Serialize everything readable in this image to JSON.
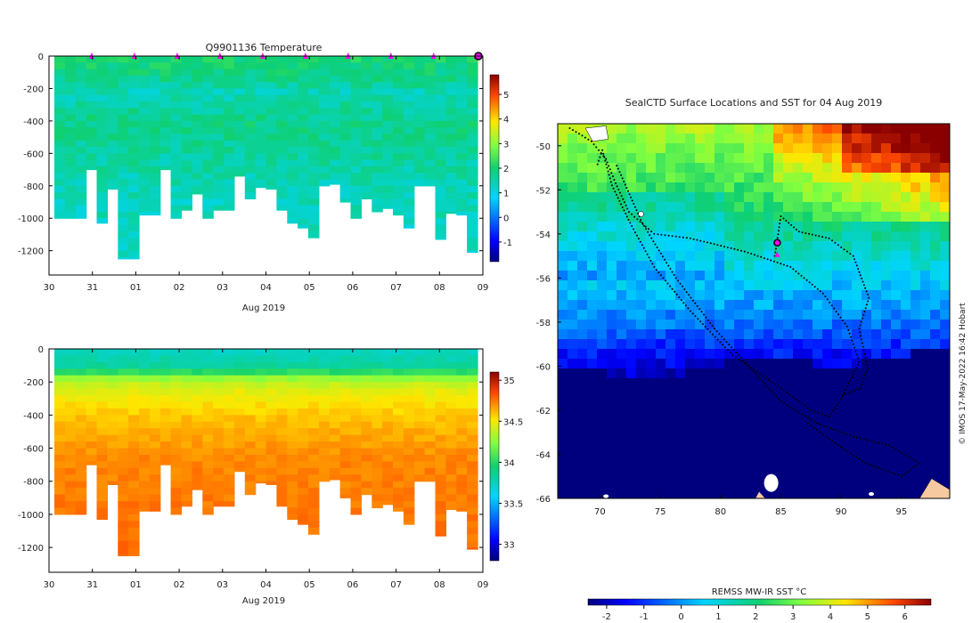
{
  "chart_data": [
    {
      "type": "heatmap",
      "title": "Q9901136  Temperature",
      "xlabel": "Aug 2019",
      "ylabel": "",
      "x_ticks": [
        "30",
        "31",
        "01",
        "02",
        "03",
        "04",
        "05",
        "06",
        "07",
        "08",
        "09"
      ],
      "y_ticks": [
        0,
        -200,
        -400,
        -600,
        -800,
        -1000,
        -1200
      ],
      "ylim": [
        -1350,
        0
      ],
      "colorbar": {
        "min": -1.8,
        "max": 5.8,
        "ticks": [
          -1,
          0,
          1,
          2,
          3,
          4,
          5
        ]
      },
      "profile_markers_day": [
        1,
        2,
        3,
        4,
        5,
        6,
        7,
        8,
        9,
        10
      ],
      "last_profile_day": 10,
      "profile_bottoms_m": [
        1000,
        1000,
        1000,
        700,
        1030,
        820,
        1250,
        1250,
        980,
        980,
        700,
        1000,
        950,
        850,
        1000,
        950,
        950,
        740,
        880,
        810,
        820,
        950,
        1030,
        1060,
        1120,
        800,
        790,
        900,
        1000,
        880,
        960,
        940,
        980,
        1060,
        800,
        800,
        1130,
        970,
        980,
        1210
      ],
      "temperature_bands": [
        {
          "depth": 0,
          "value": 2.0
        },
        {
          "depth": 150,
          "value": 1.7
        },
        {
          "depth": 200,
          "value": 1.4
        },
        {
          "depth": 400,
          "value": 1.8
        },
        {
          "depth": 600,
          "value": 1.6
        },
        {
          "depth": 800,
          "value": 1.4
        },
        {
          "depth": 1250,
          "value": 1.2
        }
      ]
    },
    {
      "type": "heatmap",
      "title": "",
      "xlabel": "Aug 2019",
      "ylabel": "",
      "x_ticks": [
        "30",
        "31",
        "01",
        "02",
        "03",
        "04",
        "05",
        "06",
        "07",
        "08",
        "09"
      ],
      "y_ticks": [
        0,
        -200,
        -400,
        -600,
        -800,
        -1000,
        -1200
      ],
      "ylim": [
        -1350,
        0
      ],
      "colorbar": {
        "min": 32.8,
        "max": 35.1,
        "ticks": [
          33,
          33.5,
          34,
          34.5,
          35
        ]
      },
      "salinity_bands": [
        {
          "depth": 0,
          "value": 33.75
        },
        {
          "depth": 100,
          "value": 33.85
        },
        {
          "depth": 150,
          "value": 34.25
        },
        {
          "depth": 220,
          "value": 34.45
        },
        {
          "depth": 400,
          "value": 34.6
        },
        {
          "depth": 650,
          "value": 34.72
        },
        {
          "depth": 1250,
          "value": 34.78
        }
      ]
    },
    {
      "type": "map",
      "title": "SealCTD Surface Locations and SST for 04 Aug 2019",
      "x_ticks": [
        "70",
        "75",
        "80",
        "85",
        "90",
        "95"
      ],
      "x_values": [
        70,
        75,
        80,
        85,
        90,
        95
      ],
      "y_ticks": [
        "-50",
        "-52",
        "-54",
        "-56",
        "-58",
        "-60",
        "-62",
        "-64",
        "-66"
      ],
      "y_values": [
        -50,
        -52,
        -54,
        -56,
        -58,
        -60,
        -62,
        -64,
        -66
      ],
      "xlim": [
        66.5,
        99
      ],
      "ylim": [
        -66,
        -49
      ],
      "current_location": [
        84.7,
        -54.4
      ],
      "track": [
        [
          67.5,
          -49.2
        ],
        [
          69.3,
          -49.8
        ],
        [
          70.5,
          -50.6
        ],
        [
          71.3,
          -51.7
        ],
        [
          72.4,
          -53.0
        ],
        [
          74.5,
          -54.0
        ],
        [
          77.5,
          -54.2
        ],
        [
          82.0,
          -54.8
        ],
        [
          85.8,
          -55.5
        ],
        [
          88.5,
          -56.7
        ],
        [
          90.5,
          -58.2
        ],
        [
          91.5,
          -59.8
        ],
        [
          90.0,
          -61.5
        ],
        [
          89.0,
          -62.3
        ],
        [
          87.5,
          -62.0
        ],
        [
          85.0,
          -61.0
        ],
        [
          81.0,
          -59.5
        ],
        [
          77.5,
          -57.5
        ],
        [
          74.5,
          -55.5
        ],
        [
          72.5,
          -53.5
        ],
        [
          71.0,
          -51.8
        ],
        [
          70.2,
          -50.2
        ],
        [
          69.7,
          -51.0
        ]
      ],
      "track2": [
        [
          71.4,
          -50.9
        ],
        [
          73.5,
          -53.5
        ],
        [
          76.3,
          -56.0
        ],
        [
          79.5,
          -58.3
        ],
        [
          82.5,
          -60.1
        ],
        [
          85.0,
          -61.6
        ],
        [
          88.0,
          -62.6
        ],
        [
          91.0,
          -63.2
        ],
        [
          94.0,
          -63.6
        ],
        [
          96.5,
          -64.4
        ],
        [
          95.0,
          -65.0
        ],
        [
          92.0,
          -64.4
        ],
        [
          89.5,
          -63.5
        ],
        [
          87.0,
          -62.5
        ]
      ],
      "track3": [
        [
          84.5,
          -55.0
        ],
        [
          85.0,
          -53.2
        ],
        [
          86.5,
          -53.9
        ],
        [
          89.0,
          -54.2
        ],
        [
          91.0,
          -55.0
        ],
        [
          92.3,
          -56.9
        ],
        [
          91.5,
          -58.3
        ],
        [
          92.2,
          -60.1
        ],
        [
          91.6,
          -61.0
        ],
        [
          89.8,
          -61.4
        ]
      ],
      "sst_bands": [
        {
          "lat": -49.0,
          "value": 3.5
        },
        {
          "lat": -52.5,
          "value": 2.2
        },
        {
          "lat": -55.5,
          "value": 0.8
        },
        {
          "lat": -58.0,
          "value": -0.4
        },
        {
          "lat": -60.0,
          "value": -1.9
        }
      ],
      "land_patches": [
        "Kerguelen",
        "Heard",
        "Antarctica"
      ]
    },
    {
      "type": "colorbar",
      "title": "REMSS MW-IR SST °C",
      "ticks": [
        "-2",
        "-1",
        "0",
        "1",
        "2",
        "3",
        "4",
        "5",
        "6"
      ],
      "min": -2.5,
      "max": 6.7
    }
  ],
  "credit": "© IMOS 17-May-2022 16:42 Hobart",
  "colors": {
    "land": "#f7c9a0",
    "track": "#000000",
    "marker": "#ff00ff",
    "no_data": "#ffffff",
    "ice": "#000080"
  }
}
